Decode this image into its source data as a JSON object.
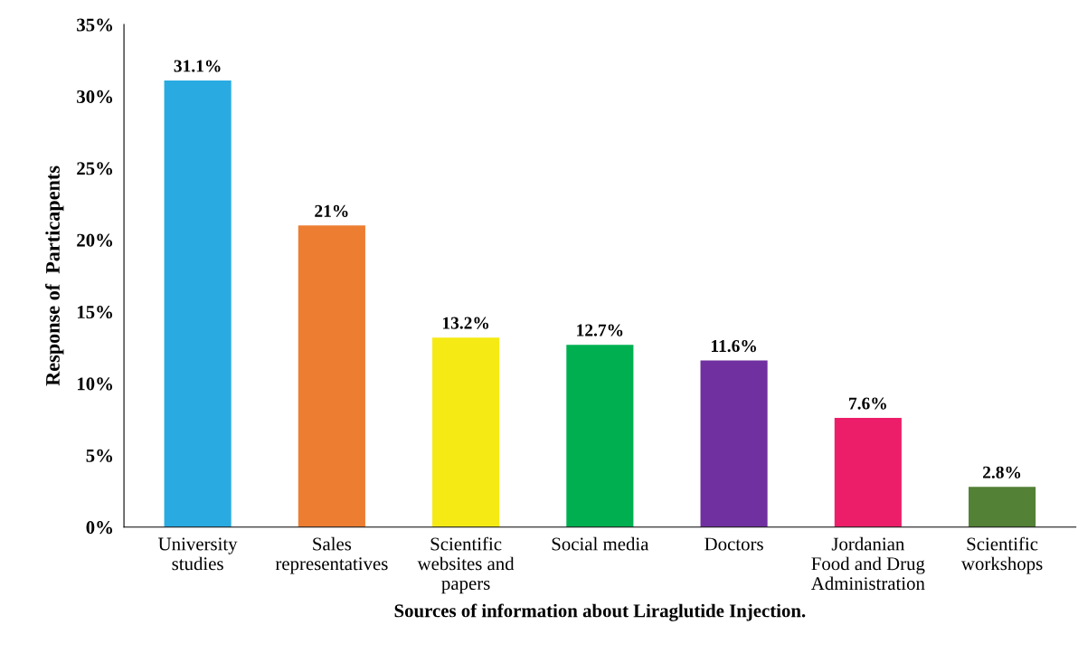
{
  "chart_data": {
    "type": "bar",
    "xlabel": "Sources of information about Liraglutide Injection.",
    "ylabel": "Response of  Particapents",
    "categories": [
      "University\nstudies",
      "Sales\nrepresentatives",
      "Scientific\nwebsites and\npapers",
      "Social media",
      "Doctors",
      "Jordanian\nFood and Drug\nAdministration",
      "Scientific\nworkshops"
    ],
    "values": [
      31.1,
      21,
      13.2,
      12.7,
      11.6,
      7.6,
      2.8
    ],
    "value_labels": [
      "31.1%",
      "21%",
      "13.2%",
      "12.7%",
      "11.6%",
      "7.6%",
      "2.8%"
    ],
    "colors": [
      "#29abe2",
      "#ed7d31",
      "#f5ea14",
      "#00b050",
      "#7030a0",
      "#ed1e69",
      "#538135"
    ],
    "ylim": [
      0,
      35
    ],
    "yticks": [
      {
        "value": 0,
        "label": "0%"
      },
      {
        "value": 5,
        "label": "5%"
      },
      {
        "value": 10,
        "label": "10%"
      },
      {
        "value": 15,
        "label": "15%"
      },
      {
        "value": 20,
        "label": "20%"
      },
      {
        "value": 25,
        "label": "25%"
      },
      {
        "value": 30,
        "label": "30%"
      },
      {
        "value": 35,
        "label": "35%"
      }
    ],
    "grid": false,
    "legend": false
  }
}
